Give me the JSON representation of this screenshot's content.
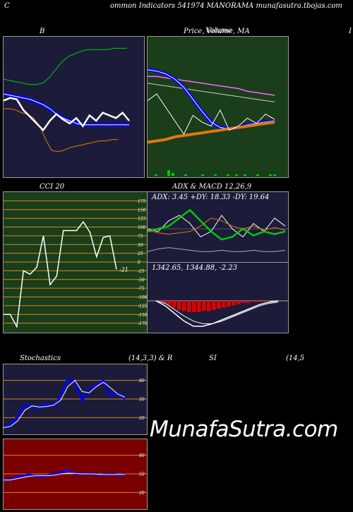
{
  "header": {
    "left": "C",
    "title": "ommon  Indicators 541974  MANORAMA munafasutra.tbojas.com"
  },
  "titles": {
    "bb": "B",
    "price": "Price,  Volume,  MA",
    "price_overlay": "Volume",
    "right_edge": "I",
    "cci": "CCI 20",
    "adx_macd": "ADX  & MACD 12,26,9",
    "stoch_left": "Stochastics",
    "stoch_mid": "(14,3,3) & R",
    "rsi": "SI",
    "rsi_params": "(14,5"
  },
  "watermark": "MunafaSutra.com",
  "colors": {
    "panel_navy": "#1c1c3a",
    "panel_green": "#1a3d1a",
    "panel_red": "#7a0000",
    "grid_orange": "#d08a20",
    "line_blue": "#0000ff",
    "line_green": "#00cc00",
    "line_orange": "#e07810"
  },
  "chart_data": [
    {
      "name": "bollinger",
      "type": "line",
      "series": [
        {
          "values": [
            71,
            70,
            69,
            68,
            67,
            67,
            68,
            72,
            78,
            84,
            88,
            90,
            92,
            93,
            93,
            93,
            93,
            94,
            94,
            94
          ]
        },
        {
          "values": [
            60,
            59,
            58,
            57,
            56,
            54,
            52,
            49,
            45,
            42,
            40,
            38,
            37,
            37,
            37,
            37,
            37,
            37,
            37,
            37
          ]
        },
        {
          "values": [
            49,
            49,
            48,
            46,
            45,
            42,
            36,
            26,
            18,
            17,
            18,
            20,
            21,
            22,
            23,
            24,
            25,
            25,
            26,
            26
          ]
        },
        {
          "values": [
            55,
            57,
            56,
            48,
            43,
            38,
            33,
            40,
            45,
            41,
            38,
            42,
            36,
            44,
            40,
            46,
            44,
            42,
            46,
            40
          ]
        }
      ]
    },
    {
      "name": "price_volume_ma",
      "type": "line",
      "series": [
        {
          "values": [
            78,
            77,
            75,
            71,
            65,
            56,
            47,
            39,
            35,
            34,
            35,
            37,
            38,
            39,
            40
          ]
        },
        {
          "values": [
            24,
            25,
            26,
            28,
            29,
            30,
            31,
            32,
            33,
            34,
            35,
            36,
            37,
            38,
            39
          ]
        },
        {
          "values": [
            68,
            67,
            66,
            65,
            64,
            63,
            62,
            61,
            60,
            59,
            58,
            57,
            56,
            55,
            54
          ]
        },
        {
          "values": [
            73,
            73,
            72,
            71,
            70,
            69,
            68,
            67,
            66,
            65,
            64,
            62,
            61,
            60,
            59
          ]
        },
        {
          "values": [
            55,
            60,
            50,
            40,
            30,
            44,
            39,
            36,
            48,
            33,
            36,
            42,
            38,
            45,
            41
          ]
        }
      ],
      "volume": [
        0,
        1,
        0,
        0,
        4,
        2,
        0,
        0,
        1,
        0,
        0,
        0,
        1,
        0,
        0,
        1,
        0,
        0,
        1,
        0,
        1,
        0,
        1,
        0,
        0,
        1,
        0,
        0,
        1,
        1
      ]
    },
    {
      "name": "cci",
      "type": "line",
      "title": "CCI 20",
      "ylim": [
        -200,
        200
      ],
      "ticks": [
        175,
        150,
        125,
        100,
        75,
        50,
        25,
        0,
        -25,
        -50,
        -75,
        -100,
        -125,
        -150,
        -175
      ],
      "values": [
        -150,
        -150,
        -185,
        -25,
        -35,
        -15,
        75,
        -65,
        -40,
        90,
        90,
        90,
        115,
        85,
        15,
        70,
        75,
        -21
      ],
      "last_label": "-21"
    },
    {
      "name": "adx",
      "type": "line",
      "readout": "ADX: 3.45 +DY: 18.33 -DY: 19.64",
      "series": [
        {
          "values": [
            3,
            5,
            6,
            5,
            4,
            3,
            3,
            4,
            3,
            3,
            4,
            3,
            3,
            4
          ]
        },
        {
          "values": [
            18,
            20,
            22,
            28,
            34,
            26,
            18,
            12,
            14,
            20,
            15,
            18,
            16,
            18
          ]
        },
        {
          "values": [
            19,
            17,
            16,
            17,
            18,
            22,
            28,
            26,
            22,
            20,
            22,
            19,
            21,
            19
          ]
        },
        {
          "values": [
            20,
            18,
            26,
            30,
            24,
            14,
            18,
            30,
            20,
            14,
            24,
            18,
            28,
            22
          ]
        }
      ]
    },
    {
      "name": "macd",
      "type": "bar",
      "readout": "1342.65,  1344.88,  -2.23",
      "histogram": [
        -1,
        -2,
        -4,
        -6,
        -8,
        -9,
        -10,
        -10,
        -10,
        -9,
        -9,
        -8,
        -7,
        -6,
        -5,
        -4,
        -3,
        -2,
        -2,
        -1,
        -1,
        -1,
        0
      ],
      "series": [
        {
          "values": [
            0,
            -4,
            -10,
            -16,
            -20,
            -20,
            -18,
            -15,
            -12,
            -9,
            -6,
            -3,
            -1,
            0
          ]
        },
        {
          "values": [
            0,
            -2,
            -7,
            -12,
            -16,
            -18,
            -18,
            -16,
            -13,
            -10,
            -7,
            -4,
            -2,
            -1
          ]
        }
      ]
    },
    {
      "name": "stochastics",
      "type": "line",
      "ylim": [
        0,
        100
      ],
      "ticks": [
        80,
        50,
        20
      ],
      "series": [
        {
          "values": [
            5,
            8,
            22,
            40,
            38,
            35,
            42,
            38,
            55,
            82,
            78,
            48,
            65,
            72,
            80,
            55,
            60,
            50
          ]
        },
        {
          "values": [
            4,
            6,
            15,
            32,
            39,
            37,
            38,
            40,
            48,
            70,
            80,
            62,
            60,
            70,
            77,
            68,
            58,
            53
          ]
        }
      ]
    },
    {
      "name": "rsi",
      "type": "line",
      "ylim": [
        0,
        100
      ],
      "ticks": [
        80,
        50,
        20
      ],
      "series": [
        {
          "values": [
            40,
            41,
            44,
            47,
            49,
            47,
            45,
            48,
            50,
            52,
            56,
            51,
            49,
            51,
            50,
            48,
            49,
            50,
            48,
            49
          ]
        },
        {
          "values": [
            40,
            40,
            42,
            44,
            46,
            47,
            47,
            47,
            48,
            50,
            51,
            51,
            50,
            50,
            50,
            49,
            49,
            49,
            49,
            49
          ]
        }
      ]
    }
  ]
}
